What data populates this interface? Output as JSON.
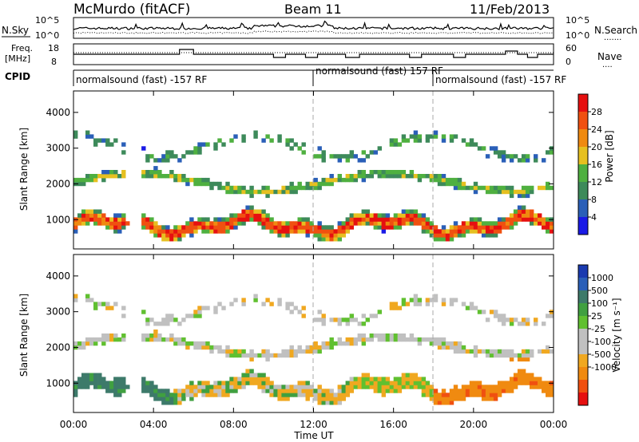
{
  "header": {
    "station": "McMurdo (fitACF)",
    "beam": "Beam 11",
    "date": "11/Feb/2013"
  },
  "noise_panel": {
    "left_label": "N.Sky",
    "right_label": "N.Search",
    "right_style": ".......",
    "left_ticks": [
      "10^5",
      "10^0"
    ],
    "right_ticks": [
      "10^5",
      "10^0"
    ]
  },
  "freq_panel": {
    "left_label_1": "Freq.",
    "left_label_2": "[MHz]",
    "right_label": "Nave",
    "right_style": "....",
    "left_ticks": [
      "18",
      "8"
    ],
    "right_ticks": [
      "60",
      "0"
    ]
  },
  "cpid": {
    "label": "CPID",
    "segments": [
      {
        "start_hour": 0.0,
        "text": "normalsound (fast) -157 RF"
      },
      {
        "start_hour": 12.0,
        "text": "normalsound (fast) 157 RF"
      },
      {
        "start_hour": 18.0,
        "text": "normalsound (fast) -157 RF"
      }
    ]
  },
  "colors": {
    "power": [
      "#1a1ae6",
      "#2a5fb8",
      "#3d8a5a",
      "#4fb040",
      "#e6c020",
      "#f08a10",
      "#f05010",
      "#e61010"
    ],
    "velocity": [
      "#e61010",
      "#f05010",
      "#f08a10",
      "#f0a820",
      "#c0c0c0",
      "#c0c0c0",
      "#60c030",
      "#40a040",
      "#3d7a6a",
      "#2a5fb8",
      "#1a3ab0"
    ]
  },
  "chart_data": [
    {
      "type": "heatmap",
      "name_panel": "power",
      "xlabel": "",
      "ylabel": "Slant Range [km]",
      "x_range_hours": [
        0,
        24
      ],
      "ylim": [
        180,
        4600
      ],
      "yticks": [
        1000,
        2000,
        3000,
        4000
      ],
      "colorbar": {
        "label": "Power [dB]",
        "ticks": [
          "4",
          "8",
          "12",
          "16",
          "20",
          "24",
          "28"
        ],
        "range": [
          0,
          32
        ]
      }
    },
    {
      "type": "heatmap",
      "name_panel": "velocity",
      "xlabel": "Time UT",
      "ylabel": "Slant Range [km]",
      "x_range_hours": [
        0,
        24
      ],
      "ylim": [
        180,
        4600
      ],
      "yticks": [
        1000,
        2000,
        3000,
        4000
      ],
      "xticks": [
        "00:00",
        "04:00",
        "08:00",
        "12:00",
        "16:00",
        "20:00",
        "00:00"
      ],
      "colorbar": {
        "label": "Velocity [m s⁻¹]",
        "ticks": [
          "1000",
          "500",
          "100",
          "25",
          "-25",
          "-100",
          "-500",
          "-1000"
        ]
      }
    }
  ]
}
